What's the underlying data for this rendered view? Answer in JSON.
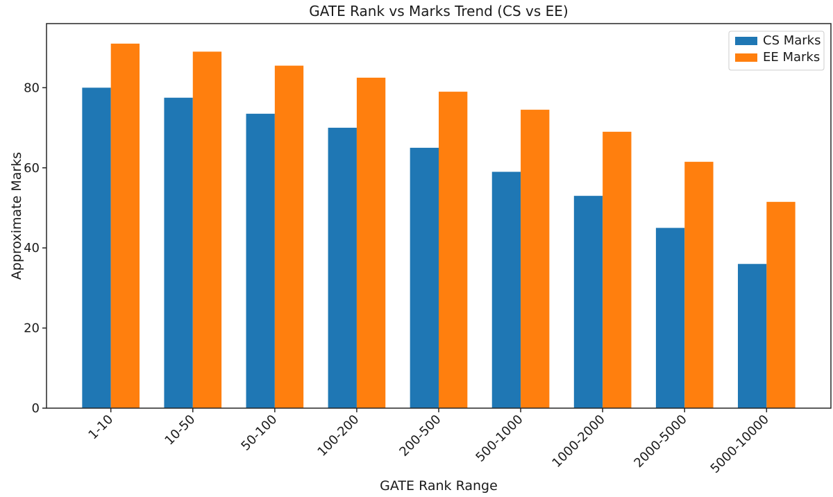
{
  "chart_data": {
    "type": "bar",
    "title": "GATE Rank vs Marks Trend (CS vs EE)",
    "xlabel": "GATE Rank Range",
    "ylabel": "Approximate Marks",
    "categories": [
      "1-10",
      "10-50",
      "50-100",
      "100-200",
      "200-500",
      "500-1000",
      "1000-2000",
      "2000-5000",
      "5000-10000"
    ],
    "series": [
      {
        "name": "CS Marks",
        "color": "#1f77b4",
        "values": [
          80,
          77.5,
          73.5,
          70,
          65,
          59,
          53,
          45,
          36
        ]
      },
      {
        "name": "EE Marks",
        "color": "#ff7f0e",
        "values": [
          91,
          89,
          85.5,
          82.5,
          79,
          74.5,
          69,
          61.5,
          51.5
        ]
      }
    ],
    "bar_width": 0.35,
    "ylim": [
      0,
      96
    ],
    "yticks": [
      0,
      20,
      40,
      60,
      80
    ],
    "grid": false,
    "legend_position": "upper right",
    "x_tick_rotation": 45,
    "spine_color": "#262626",
    "background_color": "#ffffff"
  }
}
